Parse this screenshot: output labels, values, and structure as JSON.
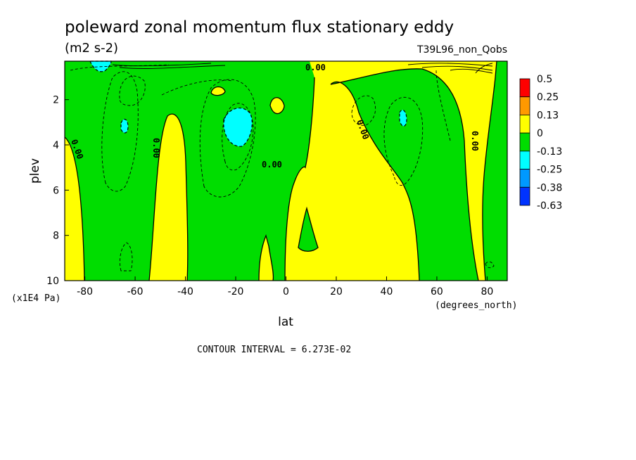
{
  "title": "poleward zonal momentum flux stationary eddy",
  "units": "(m2 s-2)",
  "dataset": "T39L96_non_Qobs",
  "contour_interval": "CONTOUR INTERVAL = 6.273E-02",
  "colors": {
    "pos_high": "#ff0000",
    "pos_mid": "#ff9900",
    "pos_low": "#ffff00",
    "neg_low": "#00dd00",
    "neg_mid": "#00ffff",
    "neg_high": "#0099ff",
    "neg_max": "#0033ff"
  },
  "chart_data": {
    "type": "contour",
    "xlabel": "lat",
    "xunits": "(degrees_north)",
    "ylabel": "plev",
    "yunits": "(x1E4 Pa)",
    "xlim": [
      -88,
      88
    ],
    "ylim": [
      10,
      0.3
    ],
    "x_ticks": [
      "-80",
      "-60",
      "-40",
      "-20",
      "0",
      "20",
      "40",
      "60",
      "80"
    ],
    "x_tick_values": [
      -80,
      -60,
      -40,
      -20,
      0,
      20,
      40,
      60,
      80
    ],
    "y_ticks": [
      "2",
      "4",
      "6",
      "8",
      "10"
    ],
    "y_tick_values": [
      2,
      4,
      6,
      8,
      10
    ],
    "colorbar_levels": [
      "0.5",
      "0.25",
      "0.13",
      "0",
      "-0.13",
      "-0.25",
      "-0.38",
      "-0.63"
    ],
    "contour_labels": [
      "0.00",
      "0.00",
      "0.00",
      "0.00",
      "0.00",
      "0.00",
      "0.00"
    ],
    "regions": [
      {
        "sign": "positive",
        "lat_range": [
          -88,
          -78
        ],
        "plev_range": [
          3.5,
          10
        ]
      },
      {
        "sign": "negative",
        "lat_range": [
          -78,
          -55
        ],
        "plev_range": [
          0.3,
          10
        ]
      },
      {
        "sign": "positive",
        "lat_range": [
          -55,
          -46
        ],
        "plev_range": [
          2.5,
          10
        ]
      },
      {
        "sign": "negative",
        "lat_range": [
          -46,
          -10
        ],
        "plev_range": [
          0.3,
          10
        ]
      },
      {
        "sign": "positive",
        "lat_range": [
          -10,
          12
        ],
        "plev_range": [
          4.5,
          10
        ]
      },
      {
        "sign": "negative",
        "lat_range": [
          12,
          53
        ],
        "plev_range": [
          0.9,
          10
        ]
      },
      {
        "sign": "positive",
        "lat_range": [
          53,
          72
        ],
        "plev_range": [
          0.3,
          10
        ]
      },
      {
        "sign": "negative",
        "lat_range": [
          72,
          88
        ],
        "plev_range": [
          0.3,
          10
        ]
      }
    ],
    "grid": false
  }
}
